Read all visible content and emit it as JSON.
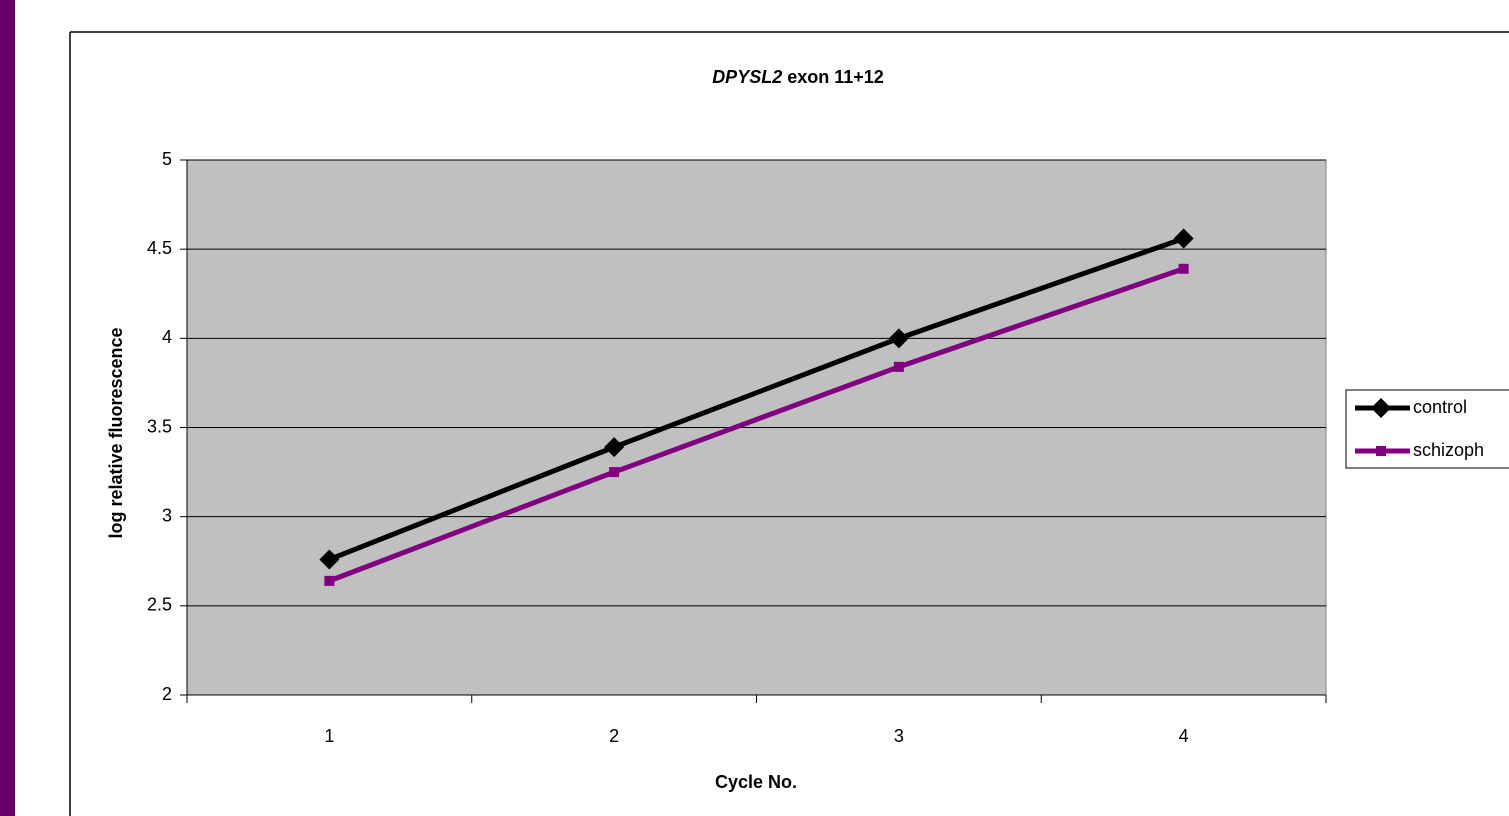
{
  "chart_data": {
    "type": "line",
    "title": "DPYSL2 exon 11+12",
    "x_label": "Cycle No.",
    "y_label": "log relative fluorescence",
    "categories": [
      "1",
      "2",
      "3",
      "4"
    ],
    "series": [
      {
        "name": "control",
        "color": "#000000",
        "marker": "diamond",
        "values": [
          2.76,
          3.39,
          4.0,
          4.56
        ]
      },
      {
        "name": "schizoph",
        "color": "#800080",
        "marker": "square",
        "values": [
          2.64,
          3.25,
          3.84,
          4.39
        ]
      }
    ],
    "ylim": [
      2,
      5
    ],
    "yticks": [
      2,
      2.5,
      3,
      3.5,
      4,
      4.5,
      5
    ],
    "grid": true,
    "legend": "right"
  }
}
